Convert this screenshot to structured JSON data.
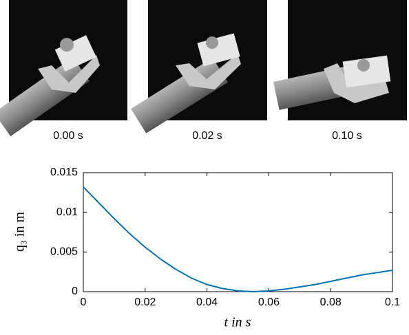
{
  "images": [
    {
      "caption": "0.00 s"
    },
    {
      "caption": "0.02 s"
    },
    {
      "caption": "0.10 s"
    }
  ],
  "chart_data": {
    "type": "line",
    "xlabel": "t in s",
    "ylabel": "q₃ in m",
    "x": [
      0,
      0.005,
      0.01,
      0.015,
      0.02,
      0.025,
      0.03,
      0.035,
      0.04,
      0.045,
      0.05,
      0.055,
      0.06,
      0.065,
      0.07,
      0.075,
      0.08,
      0.085,
      0.09,
      0.095,
      0.1
    ],
    "values": [
      0.0132,
      0.0112,
      0.0092,
      0.0073,
      0.0056,
      0.0041,
      0.0028,
      0.0017,
      0.0009,
      0.0004,
      0.0001,
      0.0,
      0.0001,
      0.0003,
      0.0006,
      0.0009,
      0.0013,
      0.0017,
      0.0021,
      0.0024,
      0.0027
    ],
    "color": "#0072bd",
    "xlim": [
      0,
      0.1
    ],
    "xticks": [
      0,
      0.02,
      0.04,
      0.06,
      0.08,
      0.1
    ],
    "ylim": [
      0,
      0.015
    ],
    "yticks": [
      0,
      0.005,
      0.01,
      0.015
    ]
  }
}
